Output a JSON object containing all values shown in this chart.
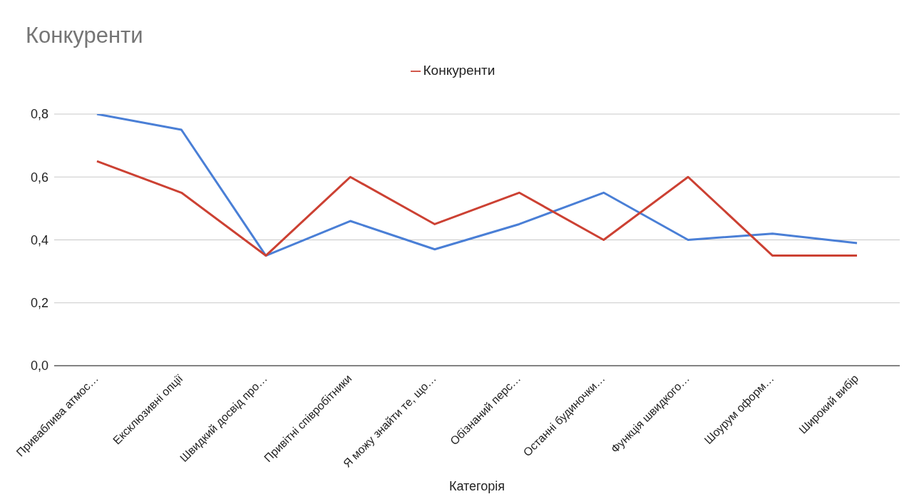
{
  "chart_data": {
    "type": "line",
    "title": "Конкуренти",
    "xlabel": "Категорія",
    "categories": [
      "Приваблива атмос…",
      "Ексклюзивні опції",
      "Швидкий досвід про…",
      "Привітні співробітники",
      "Я можу знайти те, що…",
      "Обізнаний перс…",
      "Останні будиночки…",
      "Функція швидкого…",
      "Шоурум оформ…",
      "Широкий вибір"
    ],
    "series": [
      {
        "color": "#4a7fd6",
        "values": [
          0.8,
          0.75,
          0.35,
          0.46,
          0.37,
          0.45,
          0.55,
          0.4,
          0.42,
          0.39
        ]
      },
      {
        "name": "Конкуренти",
        "color": "#cc4133",
        "values": [
          0.65,
          0.55,
          0.35,
          0.6,
          0.45,
          0.55,
          0.4,
          0.6,
          0.35,
          0.35
        ]
      }
    ],
    "ylim": [
      0,
      0.8
    ],
    "yticks": [
      {
        "value": 0,
        "label": "0,0"
      },
      {
        "value": 0.2,
        "label": "0,2"
      },
      {
        "value": 0.4,
        "label": "0,4"
      },
      {
        "value": 0.6,
        "label": "0,6"
      },
      {
        "value": 0.8,
        "label": "0,8"
      }
    ],
    "grid": "y",
    "legend": "top",
    "marker": "none",
    "line_style": "solid"
  }
}
